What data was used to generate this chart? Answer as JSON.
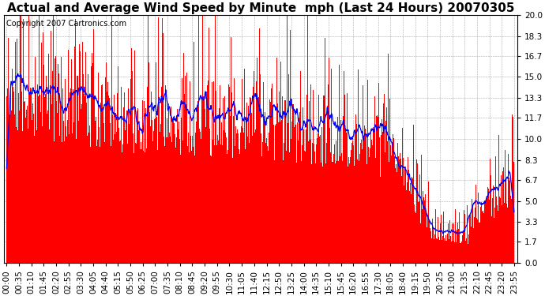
{
  "title": "Actual and Average Wind Speed by Minute  mph (Last 24 Hours) 20070305",
  "copyright": "Copyright 2007 Cartronics.com",
  "yticks": [
    0.0,
    1.7,
    3.3,
    5.0,
    6.7,
    8.3,
    10.0,
    11.7,
    13.3,
    15.0,
    16.7,
    18.3,
    20.0
  ],
  "ymax": 20.0,
  "ymin": 0.0,
  "bar_color": "#FF0000",
  "line_color": "#0000FF",
  "background_color": "#FFFFFF",
  "grid_color": "#AAAAAA",
  "title_fontsize": 11,
  "copyright_fontsize": 7,
  "tick_fontsize": 7.5
}
